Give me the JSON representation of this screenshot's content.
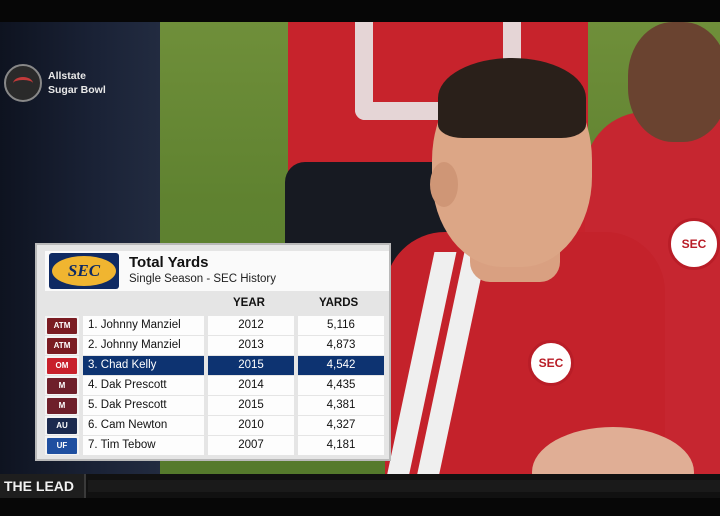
{
  "bug": {
    "icon": "espn-bowl-icon",
    "line1": "Allstate",
    "line2": "Sugar Bowl"
  },
  "graphic": {
    "logo_text": "SEC",
    "title": "Total Yards",
    "subtitle": "Single Season - SEC History",
    "columns": {
      "year": "YEAR",
      "yards": "YARDS"
    },
    "rows": [
      {
        "team_logo": "texas-am-logo",
        "team_abbr": "ATM",
        "team_color": "#7a1c22",
        "name": "1. Johnny Manziel",
        "year": "2012",
        "yards": "5,116",
        "highlighted": false
      },
      {
        "team_logo": "texas-am-logo",
        "team_abbr": "ATM",
        "team_color": "#7a1c22",
        "name": "2. Johnny Manziel",
        "year": "2013",
        "yards": "4,873",
        "highlighted": false
      },
      {
        "team_logo": "ole-miss-logo",
        "team_abbr": "OM",
        "team_color": "#c8202b",
        "name": "3. Chad Kelly",
        "year": "2015",
        "yards": "4,542",
        "highlighted": true
      },
      {
        "team_logo": "mississippi-state-logo",
        "team_abbr": "M",
        "team_color": "#6e1f2a",
        "name": "4. Dak Prescott",
        "year": "2014",
        "yards": "4,435",
        "highlighted": false
      },
      {
        "team_logo": "mississippi-state-logo",
        "team_abbr": "M",
        "team_color": "#6e1f2a",
        "name": "5. Dak Prescott",
        "year": "2015",
        "yards": "4,381",
        "highlighted": false
      },
      {
        "team_logo": "auburn-logo",
        "team_abbr": "AU",
        "team_color": "#1b2a4e",
        "name": "6. Cam Newton",
        "year": "2010",
        "yards": "4,327",
        "highlighted": false
      },
      {
        "team_logo": "florida-logo",
        "team_abbr": "UF",
        "team_color": "#1f4fa0",
        "name": "7. Tim Tebow",
        "year": "2007",
        "yards": "4,181",
        "highlighted": false
      }
    ],
    "highlight_color": "#0d3371"
  },
  "jersey_patch_text": "SEC",
  "ticker": {
    "label": "THE LEAD"
  }
}
